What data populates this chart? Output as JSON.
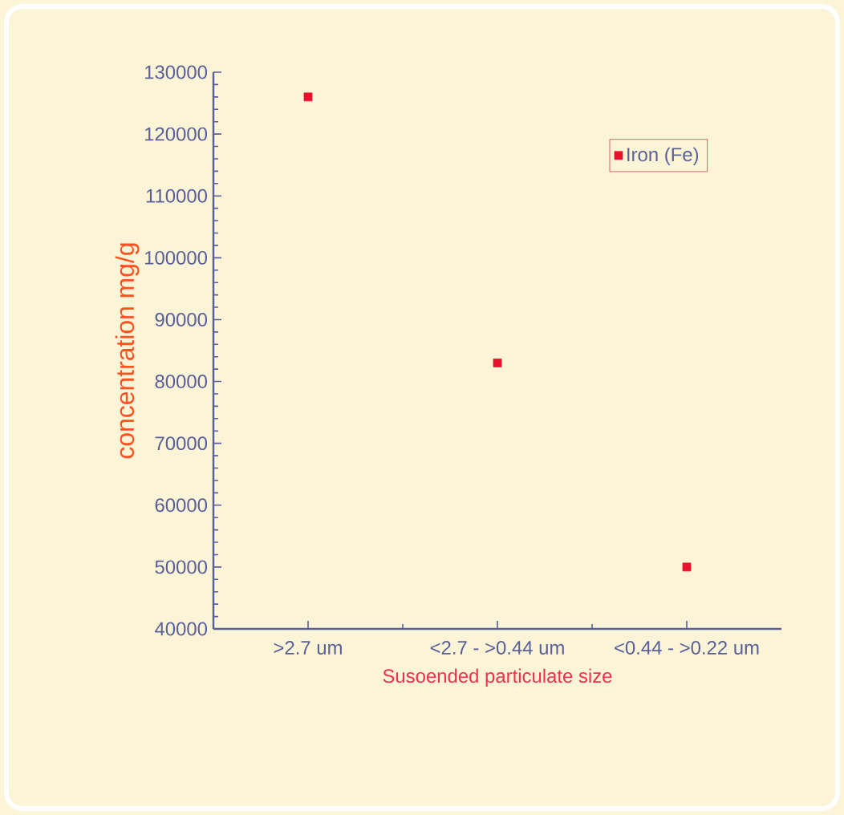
{
  "chart_data": {
    "type": "scatter",
    "xlabel": "Susoended particulate size",
    "ylabel": "concentration  mg/g",
    "categories": [
      ">2.7 um",
      "<2.7 - >0.44 um",
      "<0.44 - >0.22 um"
    ],
    "series": [
      {
        "name": "Iron (Fe)",
        "color": "#e8102a",
        "values": [
          126000,
          83000,
          50000
        ]
      }
    ],
    "ylim": [
      40000,
      130000
    ],
    "yticks": [
      40000,
      50000,
      60000,
      70000,
      80000,
      90000,
      100000,
      110000,
      120000,
      130000
    ],
    "legend": "top right",
    "marker": "square",
    "grid": false
  }
}
